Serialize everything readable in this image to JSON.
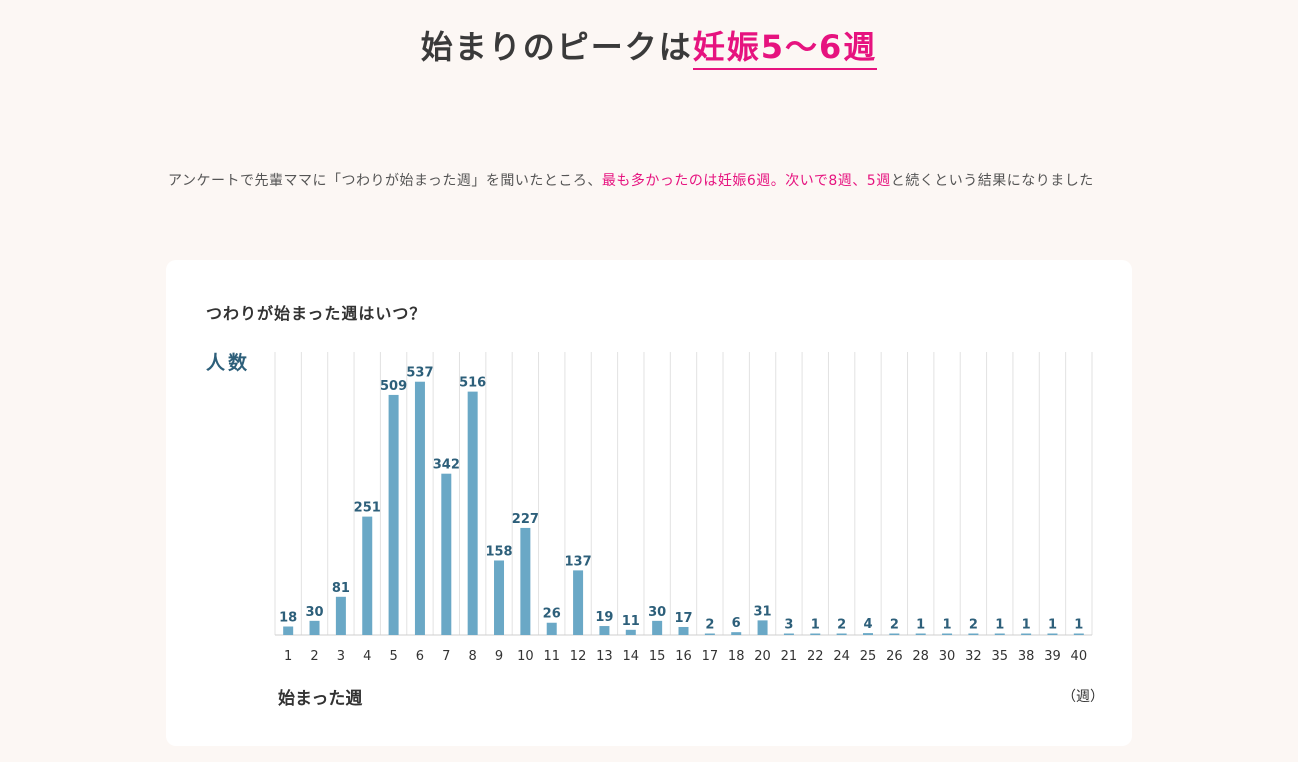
{
  "heading": {
    "prefix": "始まりのピークは",
    "highlight": "妊娠5〜6週"
  },
  "intro": {
    "part1": "アンケートで先輩ママに「つわりが始まった週」を聞いたところ、",
    "part2": "最も多かったのは妊娠6週。次いで8週、5週",
    "part3": "と続くという結果になりました"
  },
  "colors": {
    "accent": "#e6137f",
    "bar": "#6aa8c6",
    "label": "#2d5f7a",
    "grid": "#e2e2e2"
  },
  "chart_data": {
    "type": "bar",
    "title": "つわりが始まった週はいつ？",
    "ylabel": "人数",
    "xlabel": "始まった週",
    "x_unit": "（週）",
    "categories": [
      "1",
      "2",
      "3",
      "4",
      "5",
      "6",
      "7",
      "8",
      "9",
      "10",
      "11",
      "12",
      "13",
      "14",
      "15",
      "16",
      "17",
      "18",
      "20",
      "21",
      "22",
      "24",
      "25",
      "26",
      "28",
      "30",
      "32",
      "35",
      "38",
      "39",
      "40"
    ],
    "values": [
      18,
      30,
      81,
      251,
      509,
      537,
      342,
      516,
      158,
      227,
      26,
      137,
      19,
      11,
      30,
      17,
      2,
      6,
      31,
      3,
      1,
      2,
      4,
      2,
      1,
      1,
      2,
      1,
      1,
      1,
      1
    ],
    "ylim": [
      0,
      600
    ],
    "grid": "vertical"
  }
}
